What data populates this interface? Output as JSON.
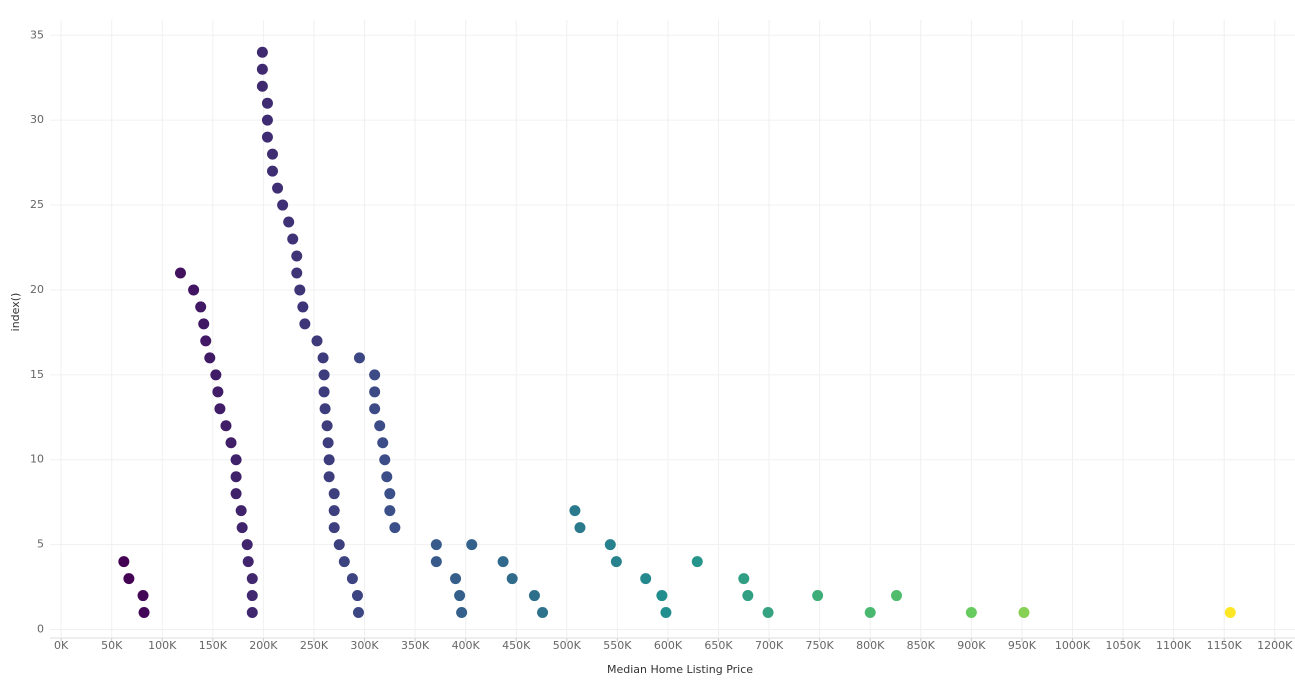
{
  "chart_data": {
    "type": "scatter",
    "x_label": "Median Home Listing Price",
    "y_label": "index()",
    "xlim": [
      -11000,
      1220000
    ],
    "ylim": [
      -0.5,
      35.9
    ],
    "grid": true,
    "color_scale": [
      "#440154",
      "#3b528b",
      "#21908d",
      "#5dc963",
      "#fde725"
    ],
    "xticks": [
      {
        "value": 0,
        "label": "0K"
      },
      {
        "value": 50000,
        "label": "50K"
      },
      {
        "value": 100000,
        "label": "100K"
      },
      {
        "value": 150000,
        "label": "150K"
      },
      {
        "value": 200000,
        "label": "200K"
      },
      {
        "value": 250000,
        "label": "250K"
      },
      {
        "value": 300000,
        "label": "300K"
      },
      {
        "value": 350000,
        "label": "350K"
      },
      {
        "value": 400000,
        "label": "400K"
      },
      {
        "value": 450000,
        "label": "450K"
      },
      {
        "value": 500000,
        "label": "500K"
      },
      {
        "value": 550000,
        "label": "550K"
      },
      {
        "value": 600000,
        "label": "600K"
      },
      {
        "value": 650000,
        "label": "650K"
      },
      {
        "value": 700000,
        "label": "700K"
      },
      {
        "value": 750000,
        "label": "750K"
      },
      {
        "value": 800000,
        "label": "800K"
      },
      {
        "value": 850000,
        "label": "850K"
      },
      {
        "value": 900000,
        "label": "900K"
      },
      {
        "value": 950000,
        "label": "950K"
      },
      {
        "value": 1000000,
        "label": "1000K"
      },
      {
        "value": 1050000,
        "label": "1050K"
      },
      {
        "value": 1100000,
        "label": "1100K"
      },
      {
        "value": 1150000,
        "label": "1150K"
      },
      {
        "value": 1200000,
        "label": "1200K"
      }
    ],
    "yticks": [
      0,
      5,
      10,
      15,
      20,
      25,
      30,
      35
    ],
    "x": [
      62000,
      67000,
      81000,
      82000,
      118000,
      131000,
      138000,
      141000,
      143000,
      147000,
      153000,
      155000,
      157000,
      163000,
      168000,
      173000,
      173000,
      173000,
      178000,
      179000,
      184000,
      185000,
      189000,
      189000,
      189000,
      199000,
      199000,
      199000,
      204000,
      204000,
      204000,
      209000,
      209000,
      214000,
      219000,
      225000,
      229000,
      233000,
      233000,
      236000,
      239000,
      241000,
      253000,
      259000,
      260000,
      260000,
      261000,
      263000,
      264000,
      265000,
      265000,
      270000,
      270000,
      270000,
      275000,
      280000,
      288000,
      293000,
      294000,
      295000,
      310000,
      310000,
      310000,
      315000,
      318000,
      320000,
      322000,
      325000,
      325000,
      330000,
      371000,
      371000,
      390000,
      394000,
      396000,
      406000,
      437000,
      446000,
      468000,
      476000,
      508000,
      513000,
      543000,
      549000,
      578000,
      594000,
      598000,
      629000,
      675000,
      679000,
      699000,
      748000,
      800000,
      826000,
      900000,
      952000,
      1156000
    ],
    "y": [
      4,
      3,
      2,
      1,
      21,
      20,
      19,
      18,
      17,
      16,
      15,
      14,
      13,
      12,
      11,
      10,
      9,
      8,
      7,
      6,
      5,
      4,
      3,
      2,
      1,
      34,
      33,
      32,
      31,
      30,
      29,
      28,
      27,
      26,
      25,
      24,
      23,
      22,
      21,
      20,
      19,
      18,
      17,
      16,
      15,
      14,
      13,
      12,
      11,
      10,
      9,
      8,
      7,
      6,
      5,
      4,
      3,
      2,
      1,
      16,
      15,
      14,
      13,
      12,
      11,
      10,
      9,
      8,
      7,
      6,
      5,
      4,
      3,
      2,
      1,
      5,
      4,
      3,
      2,
      1,
      7,
      6,
      5,
      4,
      3,
      2,
      1,
      4,
      3,
      2,
      1,
      2,
      1,
      2,
      1,
      1,
      1
    ]
  }
}
